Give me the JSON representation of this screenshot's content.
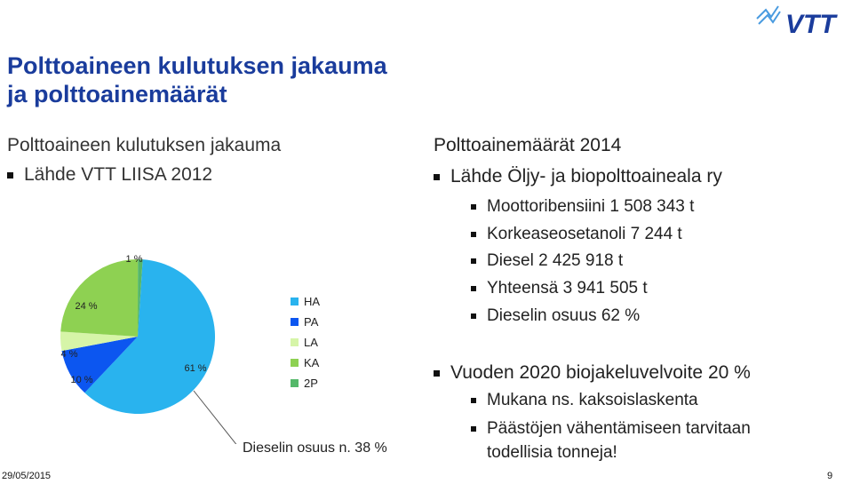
{
  "title_lines": [
    "Polttoaineen kulutuksen jakauma",
    "ja polttoainemäärät"
  ],
  "left": {
    "heading": "Polttoaineen kulutuksen jakauma",
    "source": "Lähde VTT LIISA 2012"
  },
  "right": {
    "heading": "Polttoainemäärät 2014",
    "source": "Lähde Öljy- ja biopolttoaineala ry",
    "items": [
      "Moottoribensiini 1 508 343 t",
      "Korkeaseosetanoli 7 244 t",
      "Diesel 2 425 918 t",
      "Yhteensä 3 941 505 t",
      "Dieselin osuus 62 %"
    ],
    "target_heading": "Vuoden 2020 biojakeluvelvoite 20 %",
    "target_items": [
      "Mukana ns. kaksoislaskenta",
      "Päästöjen vähentämiseen tarvitaan",
      "todellisia tonneja!"
    ]
  },
  "chart_data": {
    "type": "pie",
    "title": "",
    "slices": [
      {
        "label": "HA",
        "value": 61,
        "data_label": "61 %",
        "color": "#29b3ee"
      },
      {
        "label": "PA",
        "value": 10,
        "data_label": "10 %",
        "color": "#0c56f0"
      },
      {
        "label": "LA",
        "value": 4,
        "data_label": "4 %",
        "color": "#d6f5a8"
      },
      {
        "label": "KA",
        "value": 24,
        "data_label": "24 %",
        "color": "#8ed152"
      },
      {
        "label": "2P",
        "value": 1,
        "data_label": "1 %",
        "color": "#55b86a"
      }
    ],
    "legend_position": "right",
    "annotation": "Dieselin osuus n. 38 %"
  },
  "footer": {
    "date": "29/05/2015",
    "page": "9"
  },
  "logo": {
    "text": "VTT",
    "color": "#1a3c9c"
  },
  "colors": {
    "title": "#1a3c9c"
  }
}
